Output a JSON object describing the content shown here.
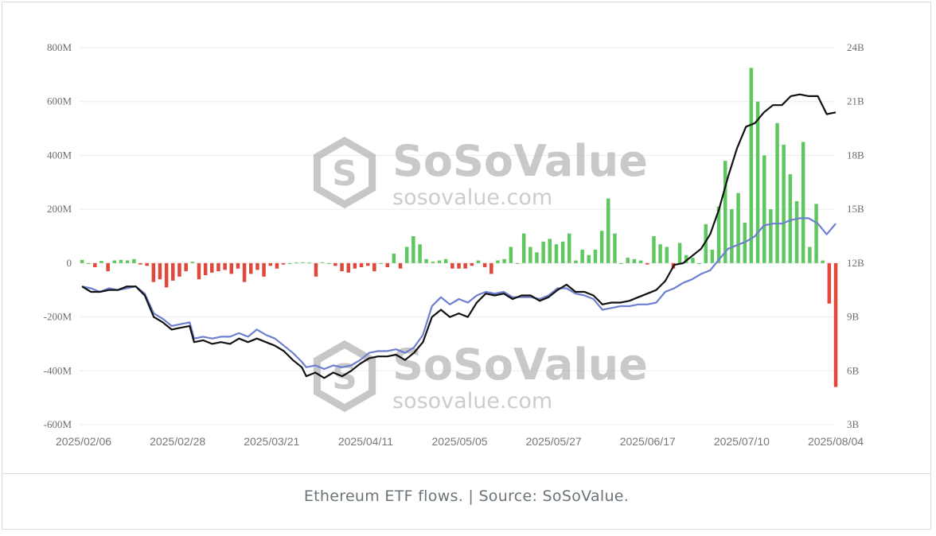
{
  "caption": "Ethereum ETF flows. | Source: SoSoValue.",
  "watermark": {
    "brand": "SoSoValue",
    "url": "sosovalue.com",
    "icon": "sosovalue-logo-icon"
  },
  "colors": {
    "inflow": "#5fc75f",
    "outflow": "#e0483c",
    "net_assets": "#111111",
    "cumulative": "#6f7fd0",
    "grid": "#ececec"
  },
  "chart_data": {
    "type": "bar",
    "title": "",
    "xlabel": "",
    "ylabel": "",
    "left_axis": {
      "ticks": [
        "800M",
        "600M",
        "400M",
        "200M",
        "0",
        "-200M",
        "-400M",
        "-600M"
      ],
      "ylim": [
        -600,
        800
      ],
      "unit": "M"
    },
    "right_axis": {
      "ticks": [
        "24B",
        "21B",
        "18B",
        "15B",
        "12B",
        "9B",
        "6B",
        "3B"
      ],
      "ylim": [
        3,
        24
      ],
      "unit": "B"
    },
    "x_tick_labels": [
      "2025/02/06",
      "2025/02/28",
      "2025/03/21",
      "2025/04/11",
      "2025/05/05",
      "2025/05/27",
      "2025/06/17",
      "2025/07/10",
      "2025/08/04"
    ],
    "grid": true,
    "legend": "none",
    "series": [
      {
        "kind": "bar",
        "axis": "left",
        "unit": "M",
        "values": [
          12,
          0,
          -15,
          8,
          -30,
          10,
          12,
          10,
          15,
          -5,
          -10,
          -70,
          -60,
          -90,
          -65,
          -50,
          -30,
          5,
          -60,
          -45,
          -35,
          -30,
          -25,
          -40,
          -20,
          -70,
          -40,
          -25,
          -50,
          -10,
          -20,
          -5,
          0,
          2,
          3,
          2,
          -50,
          3,
          0,
          -10,
          -30,
          -35,
          -20,
          -15,
          -10,
          -30,
          0,
          -15,
          35,
          -20,
          60,
          100,
          70,
          15,
          5,
          10,
          15,
          -20,
          -20,
          -20,
          -10,
          10,
          -15,
          -40,
          10,
          15,
          60,
          0,
          110,
          60,
          40,
          80,
          90,
          70,
          80,
          110,
          10,
          50,
          30,
          50,
          120,
          240,
          110,
          0,
          20,
          15,
          10,
          -5,
          100,
          70,
          60,
          -20,
          75,
          30,
          20,
          0,
          145,
          50,
          210,
          380,
          200,
          260,
          150,
          725,
          600,
          400,
          200,
          520,
          440,
          330,
          230,
          450,
          60,
          220,
          10,
          -150,
          -460
        ],
        "min_value": -460,
        "max_value": 725
      },
      {
        "kind": "line",
        "axis": "right",
        "unit": "B",
        "points": [
          [
            0,
            10.7
          ],
          [
            0.02,
            10.4
          ],
          [
            0.04,
            10.4
          ],
          [
            0.06,
            10.5
          ],
          [
            0.08,
            10.5
          ],
          [
            0.1,
            10.7
          ],
          [
            0.12,
            10.7
          ],
          [
            0.14,
            10.2
          ],
          [
            0.16,
            9.0
          ],
          [
            0.18,
            8.7
          ],
          [
            0.2,
            8.3
          ],
          [
            0.22,
            8.4
          ],
          [
            0.24,
            8.5
          ],
          [
            0.25,
            7.6
          ],
          [
            0.27,
            7.7
          ],
          [
            0.29,
            7.5
          ],
          [
            0.31,
            7.6
          ],
          [
            0.33,
            7.5
          ],
          [
            0.35,
            7.8
          ],
          [
            0.37,
            7.6
          ],
          [
            0.39,
            7.8
          ],
          [
            0.41,
            7.6
          ],
          [
            0.43,
            7.4
          ],
          [
            0.45,
            7.1
          ],
          [
            0.47,
            6.6
          ],
          [
            0.49,
            6.2
          ],
          [
            0.5,
            5.7
          ],
          [
            0.52,
            5.9
          ],
          [
            0.54,
            5.6
          ],
          [
            0.56,
            5.9
          ],
          [
            0.58,
            5.7
          ],
          [
            0.6,
            6.0
          ],
          [
            0.62,
            6.4
          ],
          [
            0.64,
            6.7
          ],
          [
            0.66,
            6.8
          ],
          [
            0.68,
            6.8
          ],
          [
            0.7,
            6.9
          ],
          [
            0.72,
            6.6
          ],
          [
            0.74,
            7.0
          ],
          [
            0.76,
            7.6
          ],
          [
            0.78,
            9.0
          ],
          [
            0.8,
            9.4
          ],
          [
            0.82,
            9.0
          ],
          [
            0.84,
            9.2
          ],
          [
            0.86,
            9.0
          ],
          [
            0.88,
            9.8
          ],
          [
            0.9,
            10.3
          ],
          [
            0.92,
            10.2
          ],
          [
            0.94,
            10.3
          ],
          [
            0.96,
            10.0
          ],
          [
            0.98,
            10.2
          ],
          [
            1.0,
            10.2
          ],
          [
            1.02,
            9.9
          ],
          [
            1.04,
            10.1
          ],
          [
            1.06,
            10.5
          ],
          [
            1.08,
            10.8
          ],
          [
            1.1,
            10.4
          ],
          [
            1.12,
            10.4
          ],
          [
            1.14,
            10.2
          ],
          [
            1.16,
            9.7
          ],
          [
            1.18,
            9.8
          ],
          [
            1.2,
            9.8
          ],
          [
            1.22,
            9.9
          ],
          [
            1.24,
            10.1
          ],
          [
            1.26,
            10.3
          ],
          [
            1.28,
            10.5
          ],
          [
            1.3,
            11.0
          ],
          [
            1.32,
            11.9
          ],
          [
            1.34,
            12.0
          ],
          [
            1.36,
            12.4
          ],
          [
            1.38,
            12.8
          ],
          [
            1.4,
            13.6
          ],
          [
            1.42,
            15.0
          ],
          [
            1.44,
            16.8
          ],
          [
            1.46,
            18.4
          ],
          [
            1.48,
            19.6
          ],
          [
            1.5,
            19.8
          ],
          [
            1.52,
            20.4
          ],
          [
            1.54,
            20.8
          ],
          [
            1.56,
            20.8
          ],
          [
            1.58,
            21.3
          ],
          [
            1.6,
            21.4
          ],
          [
            1.62,
            21.3
          ],
          [
            1.64,
            21.3
          ],
          [
            1.66,
            20.3
          ],
          [
            1.68,
            20.4
          ]
        ]
      },
      {
        "kind": "line",
        "axis": "right",
        "unit": "B",
        "points": [
          [
            0,
            10.7
          ],
          [
            0.02,
            10.6
          ],
          [
            0.04,
            10.4
          ],
          [
            0.06,
            10.6
          ],
          [
            0.08,
            10.5
          ],
          [
            0.1,
            10.6
          ],
          [
            0.12,
            10.7
          ],
          [
            0.14,
            10.3
          ],
          [
            0.16,
            9.2
          ],
          [
            0.18,
            8.9
          ],
          [
            0.2,
            8.5
          ],
          [
            0.22,
            8.6
          ],
          [
            0.24,
            8.7
          ],
          [
            0.25,
            7.8
          ],
          [
            0.27,
            7.9
          ],
          [
            0.29,
            7.8
          ],
          [
            0.31,
            7.9
          ],
          [
            0.33,
            7.9
          ],
          [
            0.35,
            8.1
          ],
          [
            0.37,
            7.9
          ],
          [
            0.39,
            8.3
          ],
          [
            0.41,
            8.0
          ],
          [
            0.43,
            7.8
          ],
          [
            0.45,
            7.4
          ],
          [
            0.47,
            7.0
          ],
          [
            0.49,
            6.5
          ],
          [
            0.5,
            6.2
          ],
          [
            0.52,
            6.3
          ],
          [
            0.54,
            6.1
          ],
          [
            0.56,
            6.3
          ],
          [
            0.58,
            6.2
          ],
          [
            0.6,
            6.3
          ],
          [
            0.62,
            6.6
          ],
          [
            0.64,
            7.0
          ],
          [
            0.66,
            7.1
          ],
          [
            0.68,
            7.1
          ],
          [
            0.7,
            7.2
          ],
          [
            0.72,
            7.0
          ],
          [
            0.74,
            7.3
          ],
          [
            0.76,
            8.0
          ],
          [
            0.78,
            9.6
          ],
          [
            0.8,
            10.1
          ],
          [
            0.82,
            9.7
          ],
          [
            0.84,
            10.0
          ],
          [
            0.86,
            9.8
          ],
          [
            0.88,
            10.2
          ],
          [
            0.9,
            10.4
          ],
          [
            0.92,
            10.3
          ],
          [
            0.94,
            10.4
          ],
          [
            0.96,
            10.1
          ],
          [
            0.98,
            10.1
          ],
          [
            1.0,
            10.1
          ],
          [
            1.02,
            10.0
          ],
          [
            1.04,
            10.2
          ],
          [
            1.06,
            10.6
          ],
          [
            1.08,
            10.6
          ],
          [
            1.1,
            10.3
          ],
          [
            1.12,
            10.2
          ],
          [
            1.14,
            10.0
          ],
          [
            1.16,
            9.4
          ],
          [
            1.18,
            9.5
          ],
          [
            1.2,
            9.6
          ],
          [
            1.22,
            9.6
          ],
          [
            1.24,
            9.7
          ],
          [
            1.26,
            9.7
          ],
          [
            1.28,
            9.8
          ],
          [
            1.3,
            10.4
          ],
          [
            1.32,
            10.6
          ],
          [
            1.34,
            10.9
          ],
          [
            1.36,
            11.1
          ],
          [
            1.38,
            11.4
          ],
          [
            1.4,
            11.6
          ],
          [
            1.42,
            12.2
          ],
          [
            1.44,
            12.8
          ],
          [
            1.46,
            13.0
          ],
          [
            1.48,
            13.2
          ],
          [
            1.5,
            13.5
          ],
          [
            1.52,
            14.1
          ],
          [
            1.54,
            14.2
          ],
          [
            1.56,
            14.2
          ],
          [
            1.58,
            14.4
          ],
          [
            1.6,
            14.5
          ],
          [
            1.62,
            14.5
          ],
          [
            1.64,
            14.2
          ],
          [
            1.66,
            13.6
          ],
          [
            1.68,
            14.2
          ]
        ]
      }
    ]
  }
}
